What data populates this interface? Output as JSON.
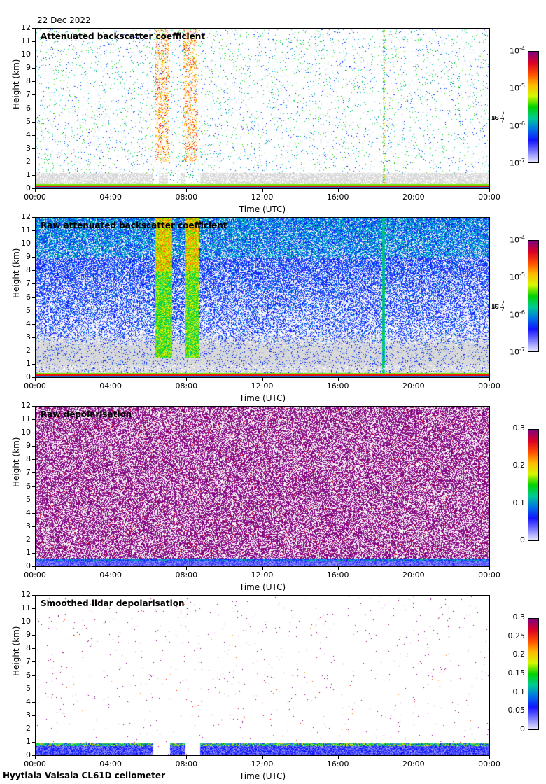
{
  "header": {
    "date": "22 Dec 2022"
  },
  "footer": {
    "instrument": "Hyytiala Vaisala CL61D ceilometer"
  },
  "colors": {
    "purple": "#800080",
    "red": "#ff0000",
    "orange": "#ff8c00",
    "yellow": "#ffff00",
    "green": "#00c800",
    "cyan": "#00c8c8",
    "blue": "#0000ff",
    "lavender": "#d8d8ff",
    "gray": "#d9d9d9"
  },
  "chart_data": [
    {
      "type": "heatmap",
      "title": "Attenuated backscatter coefficient",
      "xlabel": "Time (UTC)",
      "ylabel": "Height (km)",
      "x_ticks": [
        "00:00",
        "04:00",
        "08:00",
        "12:00",
        "16:00",
        "20:00",
        "00:00"
      ],
      "y_ticks": [
        "0",
        "1",
        "2",
        "3",
        "4",
        "5",
        "6",
        "7",
        "8",
        "9",
        "10",
        "11",
        "12"
      ],
      "xlim_hours": [
        0,
        24
      ],
      "ylim_km": [
        0,
        12
      ],
      "colorbar": {
        "scale": "log",
        "range": [
          1e-07,
          0.0001
        ],
        "ticks": [
          {
            "base": "10",
            "exp": "-4"
          },
          {
            "base": "10",
            "exp": "-5"
          },
          {
            "base": "10",
            "exp": "-6"
          },
          {
            "base": "10",
            "exp": "-7"
          }
        ],
        "label": {
          "a": "m",
          "a_exp": "-1",
          "b": " sr",
          "b_exp": "-1"
        }
      },
      "features": {
        "surface_layer_top_km": 0.35,
        "cloud_intervals_h": [
          [
            6.3,
            7.0
          ],
          [
            7.8,
            8.5
          ]
        ],
        "data_gaps_h": [
          [
            6.2,
            6.5
          ],
          [
            7.0,
            7.7
          ],
          [
            7.9,
            8.7
          ]
        ],
        "precip_line_h": 18.4
      }
    },
    {
      "type": "heatmap",
      "title": "Raw attenuated backscatter coefficient",
      "xlabel": "Time (UTC)",
      "ylabel": "Height (km)",
      "x_ticks": [
        "00:00",
        "04:00",
        "08:00",
        "12:00",
        "16:00",
        "20:00",
        "00:00"
      ],
      "y_ticks": [
        "0",
        "1",
        "2",
        "3",
        "4",
        "5",
        "6",
        "7",
        "8",
        "9",
        "10",
        "11",
        "12"
      ],
      "xlim_hours": [
        0,
        24
      ],
      "ylim_km": [
        0,
        12
      ],
      "colorbar": {
        "scale": "log",
        "range": [
          1e-07,
          0.0001
        ],
        "ticks": [
          {
            "base": "10",
            "exp": "-4"
          },
          {
            "base": "10",
            "exp": "-5"
          },
          {
            "base": "10",
            "exp": "-6"
          },
          {
            "base": "10",
            "exp": "-7"
          }
        ],
        "label": {
          "a": "m",
          "a_exp": "-1",
          "b": " sr",
          "b_exp": "-1"
        }
      },
      "features": {
        "noise_floor_top_km": 3.5,
        "cloud_intervals_h": [
          [
            6.3,
            7.2
          ],
          [
            7.9,
            8.6
          ]
        ],
        "precip_line_h": 18.4
      }
    },
    {
      "type": "heatmap",
      "title": "Raw depolarisation",
      "xlabel": "Time (UTC)",
      "ylabel": "Height (km)",
      "x_ticks": [
        "00:00",
        "04:00",
        "08:00",
        "12:00",
        "16:00",
        "20:00",
        "00:00"
      ],
      "y_ticks": [
        "0",
        "1",
        "2",
        "3",
        "4",
        "5",
        "6",
        "7",
        "8",
        "9",
        "10",
        "11",
        "12"
      ],
      "xlim_hours": [
        0,
        24
      ],
      "ylim_km": [
        0,
        12
      ],
      "colorbar": {
        "scale": "linear",
        "range": [
          0,
          0.3
        ],
        "ticks": [
          "0.3",
          "0.2",
          "0.1",
          "0"
        ]
      },
      "features": {
        "low_depol_top_km": 0.6
      }
    },
    {
      "type": "heatmap",
      "title": "Smoothed lidar depolarisation",
      "xlabel": "Time (UTC)",
      "ylabel": "Height (km)",
      "x_ticks": [
        "00:00",
        "04:00",
        "08:00",
        "12:00",
        "16:00",
        "20:00",
        "00:00"
      ],
      "y_ticks": [
        "0",
        "1",
        "2",
        "3",
        "4",
        "5",
        "6",
        "7",
        "8",
        "9",
        "10",
        "11",
        "12"
      ],
      "xlim_hours": [
        0,
        24
      ],
      "ylim_km": [
        0,
        12
      ],
      "colorbar": {
        "scale": "linear",
        "range": [
          0,
          0.3
        ],
        "ticks": [
          "0.3",
          "0.25",
          "0.2",
          "0.15",
          "0.1",
          "0.05",
          "0"
        ]
      },
      "features": {
        "low_depol_top_km": 0.9,
        "data_gaps_h": [
          [
            6.2,
            7.1
          ],
          [
            7.9,
            8.7
          ]
        ]
      }
    }
  ]
}
